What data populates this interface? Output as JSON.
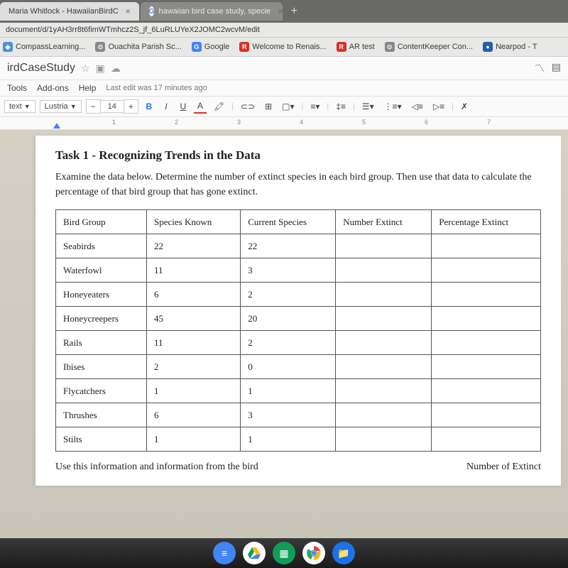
{
  "tabs": {
    "active": {
      "title": "Maria Whitlock - HawaiianBirdC",
      "icon": "📄"
    },
    "inactive": {
      "title": "hawaiian bird case study, specie",
      "icon": "G"
    }
  },
  "url": "document/d/1yAH3rr8t6fimWTmhcz2S_jf_6LuRLUYeX2JOMC2wcvM/edit",
  "bookmarks": [
    {
      "label": "CompassLearning...",
      "icon": "◆",
      "color": "#4a90d9"
    },
    {
      "label": "Ouachita Parish Sc...",
      "icon": "⊙",
      "color": "#888"
    },
    {
      "label": "Google",
      "icon": "G",
      "color": "#4285f4"
    },
    {
      "label": "Welcome to Renais...",
      "icon": "R",
      "color": "#d93025"
    },
    {
      "label": "AR test",
      "icon": "R",
      "color": "#d93025"
    },
    {
      "label": "ContentKeeper Con...",
      "icon": "⊙",
      "color": "#888"
    },
    {
      "label": "Nearpod - T",
      "icon": "●",
      "color": "#1e5fa8"
    }
  ],
  "doc": {
    "title": "irdCaseStudy",
    "menu": [
      "Tools",
      "Add-ons",
      "Help"
    ],
    "lastEdit": "Last edit was 17 minutes ago"
  },
  "toolbar": {
    "style": "text",
    "font": "Lustria",
    "size": "14"
  },
  "task": {
    "title": "Task 1 - Recognizing Trends in the Data",
    "desc": "Examine the data below. Determine the number of extinct species in each bird group. Then use that data to calculate the percentage of that bird group that has gone extinct."
  },
  "table": {
    "headers": [
      "Bird Group",
      "Species Known",
      "Current Species",
      "Number Extinct",
      "Percentage Extinct"
    ],
    "rows": [
      [
        "Seabirds",
        "22",
        "22",
        "",
        ""
      ],
      [
        "Waterfowl",
        "11",
        "3",
        "",
        ""
      ],
      [
        "Honeyeaters",
        "6",
        "2",
        "",
        ""
      ],
      [
        "Honeycreepers",
        "45",
        "20",
        "",
        ""
      ],
      [
        "Rails",
        "11",
        "2",
        "",
        ""
      ],
      [
        "Ibises",
        "2",
        "0",
        "",
        ""
      ],
      [
        "Flycatchers",
        "1",
        "1",
        "",
        ""
      ],
      [
        "Thrushes",
        "6",
        "3",
        "",
        ""
      ],
      [
        "Stilts",
        "1",
        "1",
        "",
        ""
      ]
    ]
  },
  "footer": {
    "left": "Use this information and information from the bird",
    "right": "Number of Extinct"
  },
  "ruler": [
    "1",
    "2",
    "3",
    "4",
    "5",
    "6",
    "7"
  ]
}
